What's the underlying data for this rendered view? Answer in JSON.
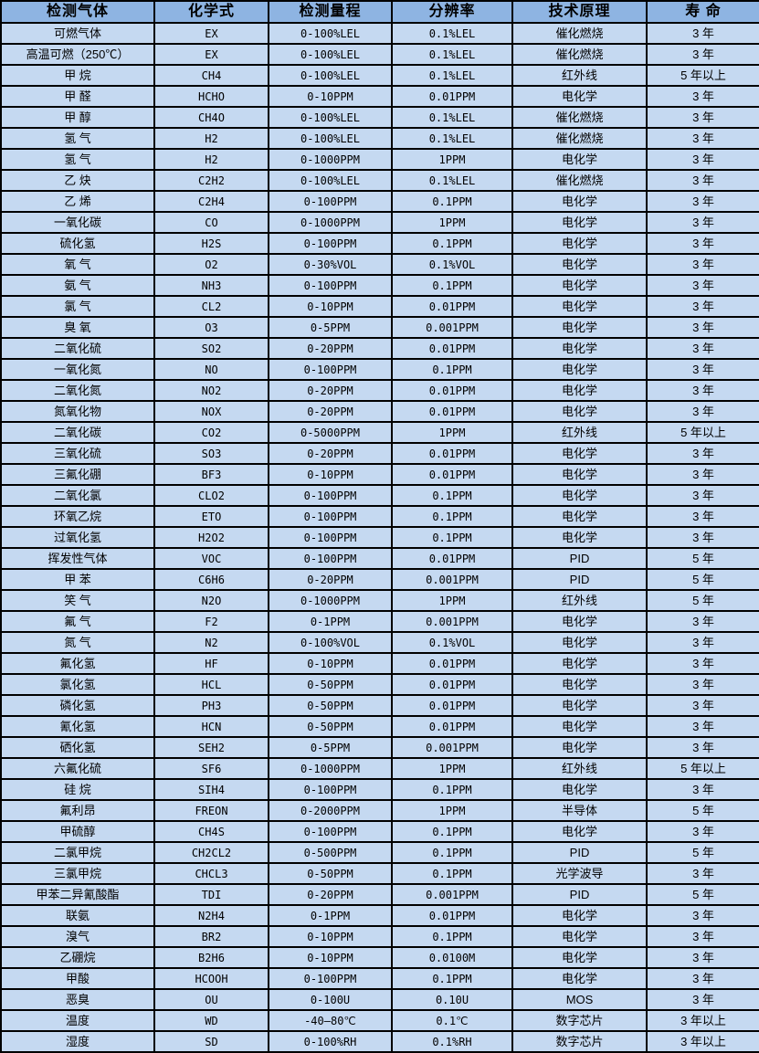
{
  "colors": {
    "header_bg": "#8EB4E2",
    "row_bg": "#C5D9F1",
    "border": "#000000",
    "text": "#000000"
  },
  "table": {
    "columns": [
      "检测气体",
      "化学式",
      "检测量程",
      "分辨率",
      "技术原理",
      "寿 命"
    ],
    "rows": [
      [
        "可燃气体",
        "EX",
        "0-100%LEL",
        "0.1%LEL",
        "催化燃烧",
        "3 年"
      ],
      [
        "高温可燃（250℃）",
        "EX",
        "0-100%LEL",
        "0.1%LEL",
        "催化燃烧",
        "3 年"
      ],
      [
        "甲 烷",
        "CH4",
        "0-100%LEL",
        "0.1%LEL",
        "红外线",
        "5 年以上"
      ],
      [
        "甲 醛",
        "HCHO",
        "0-10PPM",
        "0.01PPM",
        "电化学",
        "3 年"
      ],
      [
        "甲 醇",
        "CH4O",
        "0-100%LEL",
        "0.1%LEL",
        "催化燃烧",
        "3 年"
      ],
      [
        "氢 气",
        "H2",
        "0-100%LEL",
        "0.1%LEL",
        "催化燃烧",
        "3 年"
      ],
      [
        "氢 气",
        "H2",
        "0-1000PPM",
        "1PPM",
        "电化学",
        "3 年"
      ],
      [
        "乙 炔",
        "C2H2",
        "0-100%LEL",
        "0.1%LEL",
        "催化燃烧",
        "3 年"
      ],
      [
        "乙 烯",
        "C2H4",
        "0-100PPM",
        "0.1PPM",
        "电化学",
        "3 年"
      ],
      [
        "一氧化碳",
        "CO",
        "0-1000PPM",
        "1PPM",
        "电化学",
        "3 年"
      ],
      [
        "硫化氢",
        "H2S",
        "0-100PPM",
        "0.1PPM",
        "电化学",
        "3 年"
      ],
      [
        "氧 气",
        "O2",
        "0-30%VOL",
        "0.1%VOL",
        "电化学",
        "3 年"
      ],
      [
        "氨 气",
        "NH3",
        "0-100PPM",
        "0.1PPM",
        "电化学",
        "3 年"
      ],
      [
        "氯 气",
        "CL2",
        "0-10PPM",
        "0.01PPM",
        "电化学",
        "3 年"
      ],
      [
        "臭 氧",
        "O3",
        "0-5PPM",
        "0.001PPM",
        "电化学",
        "3 年"
      ],
      [
        "二氧化硫",
        "SO2",
        "0-20PPM",
        "0.01PPM",
        "电化学",
        "3 年"
      ],
      [
        "一氧化氮",
        "NO",
        "0-100PPM",
        "0.1PPM",
        "电化学",
        "3 年"
      ],
      [
        "二氧化氮",
        "NO2",
        "0-20PPM",
        "0.01PPM",
        "电化学",
        "3 年"
      ],
      [
        "氮氧化物",
        "NOX",
        "0-20PPM",
        "0.01PPM",
        "电化学",
        "3 年"
      ],
      [
        "二氧化碳",
        "CO2",
        "0-5000PPM",
        "1PPM",
        "红外线",
        "5 年以上"
      ],
      [
        "三氧化硫",
        "SO3",
        "0-20PPM",
        "0.01PPM",
        "电化学",
        "3 年"
      ],
      [
        "三氟化硼",
        "BF3",
        "0-10PPM",
        "0.01PPM",
        "电化学",
        "3 年"
      ],
      [
        "二氧化氯",
        "CLO2",
        "0-100PPM",
        "0.1PPM",
        "电化学",
        "3 年"
      ],
      [
        "环氧乙烷",
        "ETO",
        "0-100PPM",
        "0.1PPM",
        "电化学",
        "3 年"
      ],
      [
        "过氧化氢",
        "H2O2",
        "0-100PPM",
        "0.1PPM",
        "电化学",
        "3 年"
      ],
      [
        "挥发性气体",
        "VOC",
        "0-100PPM",
        "0.01PPM",
        "PID",
        "5 年"
      ],
      [
        "甲 苯",
        "C6H6",
        "0-20PPM",
        "0.001PPM",
        "PID",
        "5 年"
      ],
      [
        "笑 气",
        "N2O",
        "0-1000PPM",
        "1PPM",
        "红外线",
        "5 年"
      ],
      [
        "氟 气",
        "F2",
        "0-1PPM",
        "0.001PPM",
        "电化学",
        "3 年"
      ],
      [
        "氮 气",
        "N2",
        "0-100%VOL",
        "0.1%VOL",
        "电化学",
        "3 年"
      ],
      [
        "氟化氢",
        "HF",
        "0-10PPM",
        "0.01PPM",
        "电化学",
        "3 年"
      ],
      [
        "氯化氢",
        "HCL",
        "0-50PPM",
        "0.01PPM",
        "电化学",
        "3 年"
      ],
      [
        "磷化氢",
        "PH3",
        "0-50PPM",
        "0.01PPM",
        "电化学",
        "3 年"
      ],
      [
        "氰化氢",
        "HCN",
        "0-50PPM",
        "0.01PPM",
        "电化学",
        "3 年"
      ],
      [
        "硒化氢",
        "SEH2",
        "0-5PPM",
        "0.001PPM",
        "电化学",
        "3 年"
      ],
      [
        "六氟化硫",
        "SF6",
        "0-1000PPM",
        "1PPM",
        "红外线",
        "5 年以上"
      ],
      [
        "硅 烷",
        "SIH4",
        "0-100PPM",
        "0.1PPM",
        "电化学",
        "3 年"
      ],
      [
        "氟利昂",
        "FREON",
        "0-2000PPM",
        "1PPM",
        "半导体",
        "5 年"
      ],
      [
        "甲硫醇",
        "CH4S",
        "0-100PPM",
        "0.1PPM",
        "电化学",
        "3 年"
      ],
      [
        "二氯甲烷",
        "CH2CL2",
        "0-500PPM",
        "0.1PPM",
        "PID",
        "5 年"
      ],
      [
        "三氯甲烷",
        "CHCL3",
        "0-50PPM",
        "0.1PPM",
        "光学波导",
        "3 年"
      ],
      [
        "甲苯二异氰酸酯",
        "TDI",
        "0-20PPM",
        "0.001PPM",
        "PID",
        "5 年"
      ],
      [
        "联氨",
        "N2H4",
        "0-1PPM",
        "0.01PPM",
        "电化学",
        "3 年"
      ],
      [
        "溴气",
        "BR2",
        "0-10PPM",
        "0.1PPM",
        "电化学",
        "3 年"
      ],
      [
        "乙硼烷",
        "B2H6",
        "0-10PPM",
        "0.0100M",
        "电化学",
        "3 年"
      ],
      [
        "甲酸",
        "HCOOH",
        "0-100PPM",
        "0.1PPM",
        "电化学",
        "3 年"
      ],
      [
        "恶臭",
        "OU",
        "0-100U",
        "0.10U",
        "MOS",
        "3 年"
      ],
      [
        "温度",
        "WD",
        "-40—80℃",
        "0.1℃",
        "数字芯片",
        "3 年以上"
      ],
      [
        "湿度",
        "SD",
        "0-100%RH",
        "0.1%RH",
        "数字芯片",
        "3 年以上"
      ]
    ]
  }
}
